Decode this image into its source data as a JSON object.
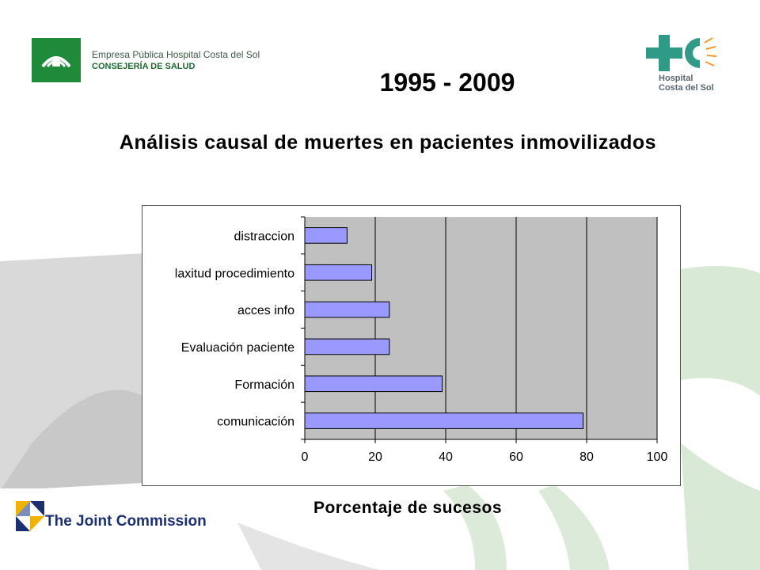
{
  "header": {
    "org_line1": "Empresa Pública Hospital Costa del Sol",
    "org_line2": "CONSEJERÍA DE SALUD",
    "hc_line1": "Hospital",
    "hc_line2": "Costa del Sol",
    "years": "1995 - 2009",
    "title": "Análisis causal de muertes en pacientes inmovilizados"
  },
  "footer": {
    "tjc_label": "The Joint Commission"
  },
  "colors": {
    "bar_fill": "#9999ff",
    "plot_bg": "#c0c0c0",
    "brand_green": "#1f8a3a",
    "hc_teal": "#2f9a86",
    "tjc_navy": "#1b2f6e",
    "tjc_gold": "#f0b400"
  },
  "chart_data": {
    "type": "bar",
    "orientation": "horizontal",
    "categories": [
      "comunicación",
      "Formación",
      "Evaluación paciente",
      "acces info",
      "laxitud procedimiento",
      "distraccion"
    ],
    "values": [
      79,
      39,
      24,
      24,
      19,
      12
    ],
    "xlabel": "Porcentaje de sucesos",
    "xlim": [
      0,
      100
    ],
    "xticks": [
      "0",
      "20",
      "40",
      "60",
      "80",
      "100"
    ],
    "grid": true,
    "legend": "none"
  }
}
